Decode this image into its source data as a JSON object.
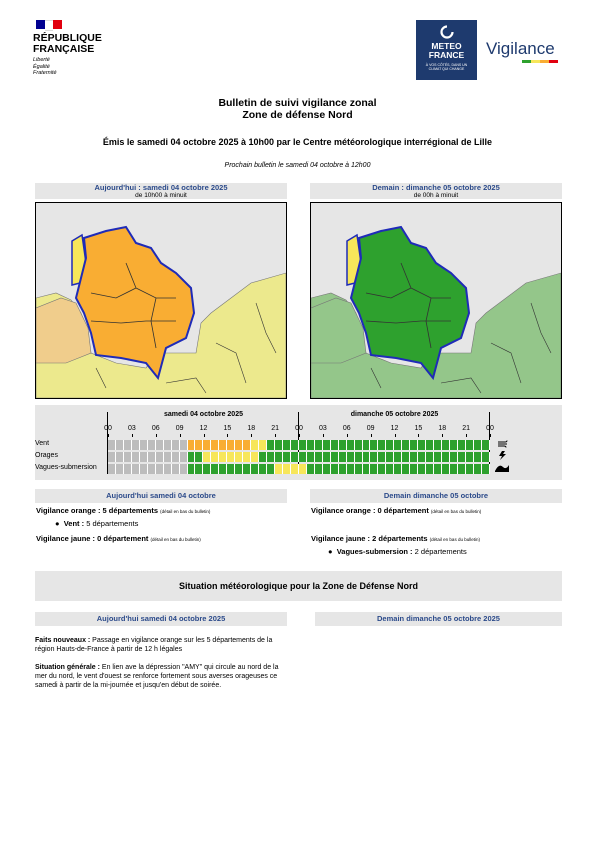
{
  "header": {
    "republic_line1": "RÉPUBLIQUE",
    "republic_line2": "FRANÇAISE",
    "motto": [
      "Liberté",
      "Égalité",
      "Fraternité"
    ],
    "meteo_line1": "METEO",
    "meteo_line2": "FRANCE",
    "meteo_tagline": "À VOS CÔTÉS, DANS UN CLIMAT QUI CHANGE",
    "vigilance_label": "Vigilance"
  },
  "title": {
    "line1": "Bulletin de suivi vigilance zonal",
    "line2": "Zone de défense Nord",
    "emission": "Émis le samedi 04 octobre 2025 à 10h00 par le Centre météorologique interrégional de Lille",
    "next_bulletin": "Prochain bulletin le samedi 04 octobre à 12h00"
  },
  "maps": [
    {
      "title": "Aujourd'hui : samedi 04 octobre 2025",
      "subtitle": "de 10h00 à minuit",
      "main_color": "#f9ad33",
      "lite_color": "#f0cd8c",
      "coast_color": "#f7e65a",
      "neighbor_color": "#ece98d"
    },
    {
      "title": "Demain : dimanche 05 octobre 2025",
      "subtitle": "de 00h à minuit",
      "main_color": "#2ea12e",
      "lite_color": "#94c68a",
      "coast_color": "#f7e65a",
      "neighbor_color": "#94c68a"
    }
  ],
  "timeline": {
    "day1": "samedi 04 octobre 2025",
    "day2": "dimanche 05 octobre 2025",
    "hours": [
      "00",
      "03",
      "06",
      "09",
      "12",
      "15",
      "18",
      "21",
      "00",
      "03",
      "06",
      "09",
      "12",
      "15",
      "18",
      "21",
      "00"
    ],
    "rows": [
      {
        "label": "Vent",
        "icon": "wind-icon",
        "segments": [
          [
            "#bdbdbd",
            10
          ],
          [
            "#f9ad33",
            8
          ],
          [
            "#f7e65a",
            2
          ],
          [
            "#2ea12e",
            28
          ]
        ]
      },
      {
        "label": "Orages",
        "icon": "lightning-icon",
        "segments": [
          [
            "#bdbdbd",
            10
          ],
          [
            "#2ea12e",
            2
          ],
          [
            "#f7e65a",
            7
          ],
          [
            "#2ea12e",
            29
          ]
        ]
      },
      {
        "label": "Vagues-submersion",
        "icon": "wave-icon",
        "segments": [
          [
            "#bdbdbd",
            10
          ],
          [
            "#2ea12e",
            11
          ],
          [
            "#f7e65a",
            4
          ],
          [
            "#2ea12e",
            23
          ]
        ]
      }
    ],
    "colors": {
      "grey": "#bdbdbd",
      "green": "#2ea12e",
      "yellow": "#f7e65a",
      "orange": "#f9ad33"
    }
  },
  "today_summary": {
    "header": "Aujourd'hui samedi 04 octobre",
    "orange_label": "Vigilance orange : 5 départements",
    "orange_note": "(détail en bas du bulletin)",
    "orange_items": [
      {
        "name": "Vent :",
        "detail": " 5 départements"
      }
    ],
    "yellow_label": "Vigilance jaune : 0 département",
    "yellow_note": "(détail en bas du bulletin)"
  },
  "tomorrow_summary": {
    "header": "Demain dimanche 05 octobre",
    "orange_label": "Vigilance orange : 0 département",
    "orange_note": "(détail en bas du bulletin)",
    "yellow_label": "Vigilance jaune : 2 départements",
    "yellow_note": "(détail en bas du bulletin)",
    "yellow_items": [
      {
        "name": "Vagues-submersion :",
        "detail": " 2 départements"
      }
    ]
  },
  "situation": {
    "header": "Situation météorologique pour la Zone de Défense Nord",
    "today_header": "Aujourd'hui samedi 04 octobre 2025",
    "tomorrow_header": "Demain dimanche 05 octobre 2025",
    "faits_label": "Faits nouveaux :",
    "faits_text": " Passage en vigilance orange sur les 5 départements de la région Hauts-de-France à partir de 12 h légales",
    "generale_label": "Situation générale :",
    "generale_text": " En lien ave la dépression \"AMY\" qui circule au nord de la mer du nord, le vent d'ouest se renforce fortement sous averses orageuses ce samedi à partir de la mi-journée et jusqu'en début de soirée."
  }
}
